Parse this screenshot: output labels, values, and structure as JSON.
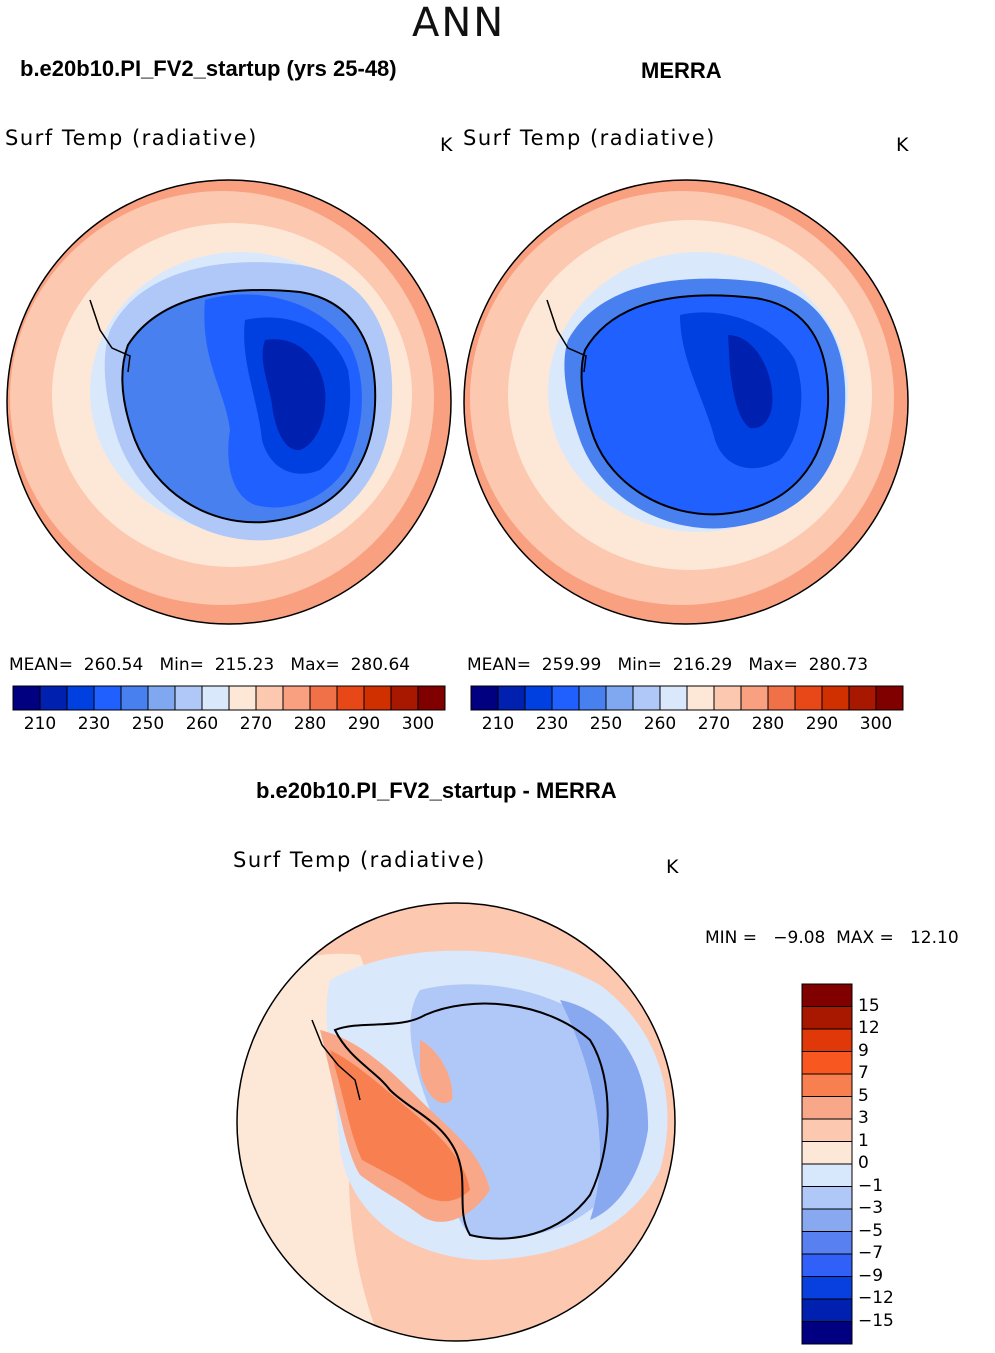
{
  "page": {
    "title": "ANN"
  },
  "panels": {
    "model": {
      "title": "b.e20b10.PI_FV2_startup (yrs 25-48)",
      "variable": "Surf Temp (radiative)",
      "units": "K",
      "stats": "MEAN=  260.54   Min=  215.23   Max=  280.64"
    },
    "obs": {
      "title": "MERRA",
      "variable": "Surf Temp (radiative)",
      "units": "K",
      "stats": "MEAN=  259.99   Min=  216.29   Max=  280.73"
    },
    "diff": {
      "title": "b.e20b10.PI_FV2_startup - MERRA",
      "variable": "Surf Temp (radiative)",
      "units": "K",
      "minmax": "MIN =   −9.08  MAX =   12.10"
    }
  },
  "colorbar_abs": {
    "colors": [
      "#000080",
      "#0020b0",
      "#0040e0",
      "#2060ff",
      "#4880f0",
      "#80a8f0",
      "#b0c8f8",
      "#dae8fc",
      "#fde8d8",
      "#fcc8b0",
      "#f8a080",
      "#f07048",
      "#e84818",
      "#d03000",
      "#a81800",
      "#800000"
    ],
    "labels": [
      "210",
      "230",
      "250",
      "260",
      "270",
      "280",
      "290",
      "300"
    ]
  },
  "colorbar_diff": {
    "colors": [
      "#800000",
      "#a81800",
      "#e03808",
      "#f85820",
      "#f88050",
      "#f8a888",
      "#fdc8b0",
      "#fde8d8",
      "#d8e8fc",
      "#b0c8f8",
      "#88a8f0",
      "#5880f0",
      "#3060f8",
      "#0840e0",
      "#0020b0",
      "#000080"
    ],
    "labels": [
      "15",
      "12",
      "9",
      "7",
      "5",
      "3",
      "1",
      "0",
      "−1",
      "−3",
      "−5",
      "−7",
      "−9",
      "−12",
      "−15"
    ]
  }
}
